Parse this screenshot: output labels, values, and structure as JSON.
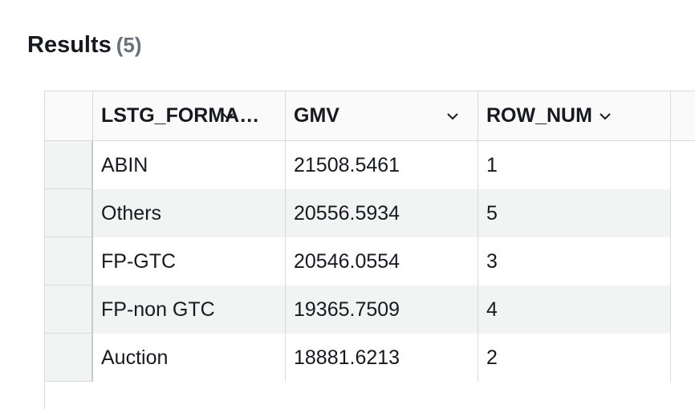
{
  "header": {
    "title": "Results",
    "count": "(5)"
  },
  "table": {
    "columns": [
      "LSTG_FORMA…",
      "GMV",
      "ROW_NUM"
    ],
    "rows": [
      [
        "ABIN",
        "21508.5461",
        "1"
      ],
      [
        "Others",
        "20556.5934",
        "5"
      ],
      [
        "FP-GTC",
        "20546.0554",
        "3"
      ],
      [
        "FP-non GTC",
        "19365.7509",
        "4"
      ],
      [
        "Auction",
        "18881.6213",
        "2"
      ]
    ]
  }
}
